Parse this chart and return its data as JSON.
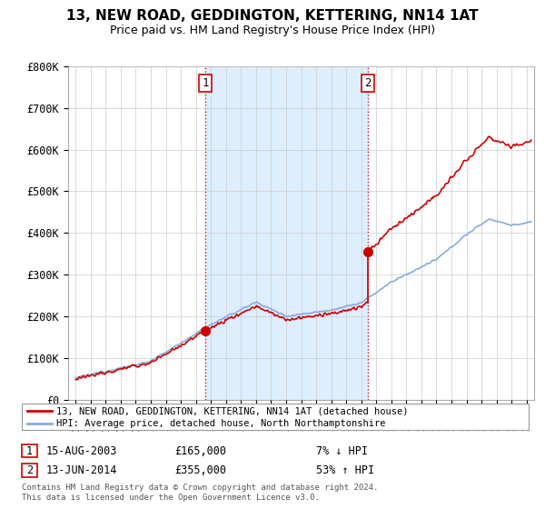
{
  "title": "13, NEW ROAD, GEDDINGTON, KETTERING, NN14 1AT",
  "subtitle": "Price paid vs. HM Land Registry's House Price Index (HPI)",
  "ylabel_ticks": [
    "£0",
    "£100K",
    "£200K",
    "£300K",
    "£400K",
    "£500K",
    "£600K",
    "£700K",
    "£800K"
  ],
  "ytick_values": [
    0,
    100000,
    200000,
    300000,
    400000,
    500000,
    600000,
    700000,
    800000
  ],
  "ylim": [
    0,
    800000
  ],
  "xlim_start": 1994.5,
  "xlim_end": 2025.5,
  "sale1_x": 2003.62,
  "sale1_y": 165000,
  "sale2_x": 2014.45,
  "sale2_y": 355000,
  "legend_line1": "13, NEW ROAD, GEDDINGTON, KETTERING, NN14 1AT (detached house)",
  "legend_line2": "HPI: Average price, detached house, North Northamptonshire",
  "table_row1": [
    "1",
    "15-AUG-2003",
    "£165,000",
    "7% ↓ HPI"
  ],
  "table_row2": [
    "2",
    "13-JUN-2014",
    "£355,000",
    "53% ↑ HPI"
  ],
  "footer1": "Contains HM Land Registry data © Crown copyright and database right 2024.",
  "footer2": "This data is licensed under the Open Government Licence v3.0.",
  "red_color": "#cc0000",
  "blue_color": "#88aadd",
  "shade_color": "#ddeeff",
  "dashed_color": "#cc0000",
  "background_color": "#ffffff",
  "grid_color": "#cccccc"
}
